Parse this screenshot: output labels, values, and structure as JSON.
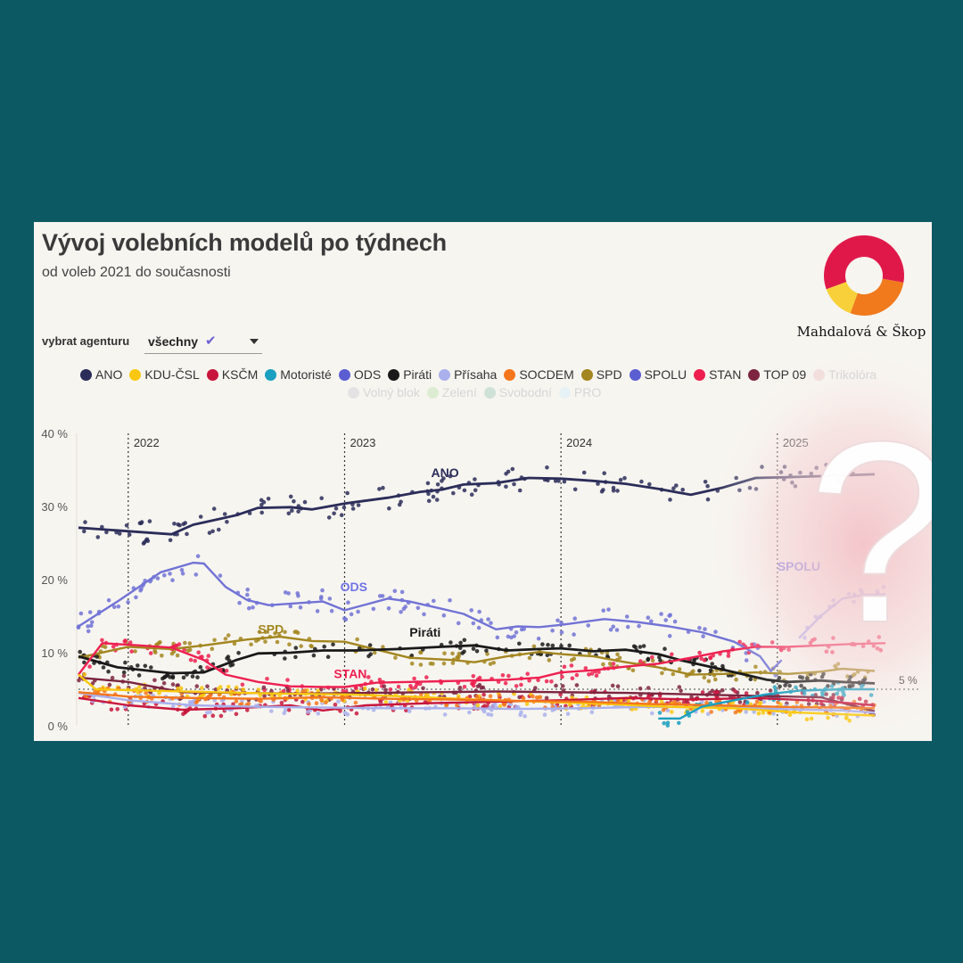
{
  "header": {
    "title": "Vývoj volebních modelů po týdnech",
    "subtitle": "od voleb 2021 do současnosti"
  },
  "logo": {
    "caption": "Mahdalová & Škop",
    "colors": [
      "#e0184a",
      "#f07a1c",
      "#f8d03a"
    ]
  },
  "filter": {
    "label": "vybrat agenturu",
    "value": "všechny"
  },
  "legend": {
    "row1": [
      {
        "name": "ANO",
        "color": "#2b2d59",
        "active": true
      },
      {
        "name": "KDU-ČSL",
        "color": "#f9c80e",
        "active": true
      },
      {
        "name": "KSČM",
        "color": "#c8163c",
        "active": true
      },
      {
        "name": "Motoristé",
        "color": "#1a9fc0",
        "active": true
      },
      {
        "name": "ODS",
        "color": "#5b5ed1",
        "active": true
      },
      {
        "name": "Piráti",
        "color": "#1a1a1a",
        "active": true
      },
      {
        "name": "Přísaha",
        "color": "#a9b0ec",
        "active": true
      },
      {
        "name": "SOCDEM",
        "color": "#f4761c",
        "active": true
      },
      {
        "name": "SPD",
        "color": "#a3861f",
        "active": true
      },
      {
        "name": "SPOLU",
        "color": "#5b5ed1",
        "active": true
      },
      {
        "name": "STAN",
        "color": "#ee2050",
        "active": true
      },
      {
        "name": "TOP 09",
        "color": "#7c2440",
        "active": true
      },
      {
        "name": "Trikolóra",
        "color": "#f3dede",
        "active": false
      }
    ],
    "row2": [
      {
        "name": "Volný blok",
        "color": "#e3e3e3",
        "active": false
      },
      {
        "name": "Zelení",
        "color": "#dcecd2",
        "active": false
      },
      {
        "name": "Svobodní",
        "color": "#d0e2d8",
        "active": false
      },
      {
        "name": "PRO",
        "color": "#e7f2f6",
        "active": false
      }
    ]
  },
  "chart_data": {
    "type": "line",
    "y_unit": "%",
    "ylim": [
      0,
      40
    ],
    "y_ticks": [
      "0 %",
      "10 %",
      "20 %",
      "30 %",
      "40 %"
    ],
    "year_markers": [
      "2022",
      "2023",
      "2024",
      "2025"
    ],
    "threshold": {
      "value": 5,
      "label": "5 %"
    },
    "x_range": [
      "2021-10-08",
      "2025-06-30"
    ],
    "series": [
      {
        "name": "ANO",
        "color": "#2b2d59",
        "label": "ANO",
        "values": [
          [
            2021.77,
            27.1
          ],
          [
            2022.2,
            26.2
          ],
          [
            2022.3,
            27.5
          ],
          [
            2022.5,
            28.8
          ],
          [
            2022.6,
            29.8
          ],
          [
            2022.75,
            29.9
          ],
          [
            2022.85,
            29.6
          ],
          [
            2023.0,
            30.4
          ],
          [
            2023.2,
            31.2
          ],
          [
            2023.35,
            32.0
          ],
          [
            2023.45,
            32.3
          ],
          [
            2023.55,
            33.0
          ],
          [
            2023.7,
            33.2
          ],
          [
            2023.85,
            33.9
          ],
          [
            2024.0,
            33.8
          ],
          [
            2024.15,
            33.5
          ],
          [
            2024.3,
            33.1
          ],
          [
            2024.45,
            32.4
          ],
          [
            2024.6,
            31.6
          ],
          [
            2024.75,
            32.6
          ],
          [
            2024.9,
            33.9
          ],
          [
            2025.05,
            34.0
          ],
          [
            2025.25,
            34.2
          ],
          [
            2025.45,
            34.4
          ]
        ]
      },
      {
        "name": "ODS",
        "color": "#7173d6",
        "label": "ODS",
        "values": [
          [
            2021.77,
            13.6
          ],
          [
            2021.95,
            17.0
          ],
          [
            2022.15,
            21.0
          ],
          [
            2022.3,
            22.3
          ],
          [
            2022.35,
            22.2
          ],
          [
            2022.45,
            19.0
          ],
          [
            2022.55,
            17.2
          ],
          [
            2022.65,
            16.5
          ],
          [
            2022.8,
            16.8
          ],
          [
            2022.9,
            17.0
          ],
          [
            2023.0,
            15.8
          ],
          [
            2023.1,
            16.6
          ],
          [
            2023.2,
            17.4
          ],
          [
            2023.3,
            17.0
          ],
          [
            2023.45,
            16.0
          ],
          [
            2023.55,
            15.3
          ],
          [
            2023.7,
            13.2
          ],
          [
            2023.8,
            13.6
          ],
          [
            2023.9,
            13.5
          ],
          [
            2024.0,
            13.8
          ],
          [
            2024.1,
            14.2
          ],
          [
            2024.2,
            14.6
          ],
          [
            2024.35,
            14.2
          ],
          [
            2024.5,
            13.6
          ],
          [
            2024.65,
            12.8
          ],
          [
            2024.8,
            11.5
          ],
          [
            2024.92,
            9.5
          ],
          [
            2024.97,
            7.5
          ],
          [
            2025.02,
            9.0
          ]
        ]
      },
      {
        "name": "SPOLU",
        "color": "#a9acf0",
        "label": "SPOLU",
        "values": [
          [
            2025.1,
            12.0
          ],
          [
            2025.2,
            15.0
          ],
          [
            2025.3,
            17.4
          ],
          [
            2025.4,
            17.9
          ],
          [
            2025.5,
            18.0
          ]
        ]
      },
      {
        "name": "SPD",
        "color": "#a3861f",
        "label": "SPD",
        "values": [
          [
            2021.77,
            9.3
          ],
          [
            2022.0,
            10.8
          ],
          [
            2022.2,
            10.5
          ],
          [
            2022.35,
            11.0
          ],
          [
            2022.55,
            11.8
          ],
          [
            2022.7,
            12.2
          ],
          [
            2022.85,
            11.6
          ],
          [
            2023.0,
            11.5
          ],
          [
            2023.15,
            10.4
          ],
          [
            2023.3,
            9.3
          ],
          [
            2023.5,
            9.0
          ],
          [
            2023.6,
            8.7
          ],
          [
            2023.75,
            9.5
          ],
          [
            2023.9,
            10.1
          ],
          [
            2024.0,
            9.8
          ],
          [
            2024.15,
            9.5
          ],
          [
            2024.3,
            8.7
          ],
          [
            2024.45,
            8.0
          ],
          [
            2024.6,
            7.0
          ],
          [
            2024.75,
            7.1
          ],
          [
            2024.9,
            7.3
          ],
          [
            2025.05,
            7.1
          ],
          [
            2025.2,
            7.4
          ],
          [
            2025.3,
            7.8
          ],
          [
            2025.45,
            7.5
          ]
        ]
      },
      {
        "name": "Piráti",
        "color": "#1a1a1a",
        "label": "Piráti",
        "values": [
          [
            2021.77,
            9.5
          ],
          [
            2021.95,
            8.0
          ],
          [
            2022.2,
            7.2
          ],
          [
            2022.35,
            7.3
          ],
          [
            2022.5,
            9.0
          ],
          [
            2022.6,
            9.9
          ],
          [
            2022.75,
            10.0
          ],
          [
            2022.9,
            10.3
          ],
          [
            2023.05,
            10.3
          ],
          [
            2023.25,
            10.5
          ],
          [
            2023.45,
            10.8
          ],
          [
            2023.6,
            11.0
          ],
          [
            2023.75,
            10.3
          ],
          [
            2023.9,
            10.5
          ],
          [
            2024.0,
            10.6
          ],
          [
            2024.15,
            10.2
          ],
          [
            2024.3,
            10.4
          ],
          [
            2024.45,
            9.8
          ],
          [
            2024.55,
            9.0
          ],
          [
            2024.7,
            8.0
          ],
          [
            2024.85,
            7.0
          ],
          [
            2024.95,
            6.3
          ],
          [
            2025.05,
            6.0
          ],
          [
            2025.2,
            6.2
          ],
          [
            2025.3,
            6.0
          ],
          [
            2025.45,
            5.8
          ]
        ]
      },
      {
        "name": "STAN",
        "color": "#ee2050",
        "label": "STAN",
        "values": [
          [
            2021.77,
            7.0
          ],
          [
            2021.88,
            11.3
          ],
          [
            2022.05,
            11.0
          ],
          [
            2022.2,
            10.7
          ],
          [
            2022.35,
            9.0
          ],
          [
            2022.45,
            7.0
          ],
          [
            2022.6,
            6.0
          ],
          [
            2022.75,
            5.4
          ],
          [
            2022.9,
            5.3
          ],
          [
            2023.0,
            5.3
          ],
          [
            2023.15,
            5.9
          ],
          [
            2023.3,
            6.0
          ],
          [
            2023.45,
            6.1
          ],
          [
            2023.6,
            6.2
          ],
          [
            2023.75,
            6.3
          ],
          [
            2023.9,
            6.6
          ],
          [
            2024.0,
            7.3
          ],
          [
            2024.15,
            7.6
          ],
          [
            2024.3,
            8.1
          ],
          [
            2024.45,
            8.5
          ],
          [
            2024.6,
            9.3
          ],
          [
            2024.75,
            10.2
          ],
          [
            2024.9,
            10.8
          ],
          [
            2025.05,
            10.8
          ],
          [
            2025.2,
            11.0
          ],
          [
            2025.35,
            11.2
          ],
          [
            2025.5,
            11.3
          ]
        ]
      },
      {
        "name": "TOP 09",
        "color": "#7c2440",
        "label": "",
        "values": [
          [
            2021.77,
            6.6
          ],
          [
            2022.0,
            6.0
          ],
          [
            2022.25,
            4.6
          ],
          [
            2022.5,
            4.5
          ],
          [
            2022.8,
            4.4
          ],
          [
            2023.1,
            4.5
          ],
          [
            2023.4,
            4.6
          ],
          [
            2023.7,
            4.7
          ],
          [
            2024.0,
            4.6
          ],
          [
            2024.3,
            4.5
          ],
          [
            2024.6,
            4.3
          ],
          [
            2024.9,
            4.1
          ],
          [
            2025.2,
            3.9
          ],
          [
            2025.45,
            2.0
          ]
        ]
      },
      {
        "name": "KSČM",
        "color": "#c8163c",
        "label": "",
        "values": [
          [
            2021.77,
            3.8
          ],
          [
            2022.0,
            2.8
          ],
          [
            2022.25,
            2.2
          ],
          [
            2022.5,
            2.4
          ],
          [
            2022.75,
            2.8
          ],
          [
            2022.9,
            2.1
          ],
          [
            2023.1,
            2.8
          ],
          [
            2023.4,
            3.1
          ],
          [
            2023.7,
            3.3
          ],
          [
            2024.0,
            3.5
          ],
          [
            2024.3,
            3.8
          ],
          [
            2024.6,
            3.6
          ],
          [
            2024.9,
            3.8
          ],
          [
            2025.2,
            3.4
          ],
          [
            2025.45,
            2.8
          ]
        ]
      },
      {
        "name": "Přísaha",
        "color": "#a9b0ec",
        "label": "",
        "values": [
          [
            2021.77,
            4.5
          ],
          [
            2022.0,
            3.5
          ],
          [
            2022.3,
            2.8
          ],
          [
            2022.6,
            2.6
          ],
          [
            2022.9,
            2.5
          ],
          [
            2023.2,
            2.4
          ],
          [
            2023.5,
            2.4
          ],
          [
            2023.8,
            2.3
          ],
          [
            2024.1,
            2.4
          ],
          [
            2024.4,
            2.6
          ],
          [
            2024.7,
            2.5
          ],
          [
            2025.0,
            2.3
          ],
          [
            2025.3,
            2.1
          ],
          [
            2025.45,
            1.8
          ]
        ]
      },
      {
        "name": "KDU-ČSL",
        "color": "#f9c80e",
        "label": "",
        "values": [
          [
            2021.77,
            7.0
          ],
          [
            2021.85,
            5.0
          ],
          [
            2022.1,
            4.8
          ],
          [
            2022.4,
            4.6
          ],
          [
            2022.7,
            4.4
          ],
          [
            2023.0,
            4.3
          ],
          [
            2023.3,
            4.0
          ],
          [
            2023.6,
            3.6
          ],
          [
            2023.9,
            3.3
          ],
          [
            2024.2,
            3.0
          ],
          [
            2024.5,
            2.6
          ],
          [
            2024.8,
            2.4
          ],
          [
            2025.1,
            1.8
          ],
          [
            2025.45,
            1.4
          ]
        ]
      },
      {
        "name": "SOCDEM",
        "color": "#f4761c",
        "label": "",
        "values": [
          [
            2021.77,
            4.6
          ],
          [
            2022.0,
            4.0
          ],
          [
            2022.3,
            3.8
          ],
          [
            2022.6,
            3.7
          ],
          [
            2022.9,
            3.9
          ],
          [
            2023.2,
            3.7
          ],
          [
            2023.5,
            3.6
          ],
          [
            2023.8,
            3.4
          ],
          [
            2024.1,
            3.3
          ],
          [
            2024.4,
            3.0
          ],
          [
            2024.7,
            2.8
          ],
          [
            2025.0,
            2.6
          ],
          [
            2025.3,
            2.5
          ],
          [
            2025.45,
            2.4
          ]
        ]
      },
      {
        "name": "Motoristé",
        "color": "#1a9fc0",
        "label": "",
        "values": [
          [
            2024.45,
            1.0
          ],
          [
            2024.55,
            1.0
          ],
          [
            2024.65,
            2.6
          ],
          [
            2024.8,
            3.5
          ],
          [
            2024.95,
            4.3
          ],
          [
            2025.1,
            4.8
          ],
          [
            2025.3,
            5.0
          ],
          [
            2025.45,
            5.0
          ]
        ]
      }
    ]
  }
}
